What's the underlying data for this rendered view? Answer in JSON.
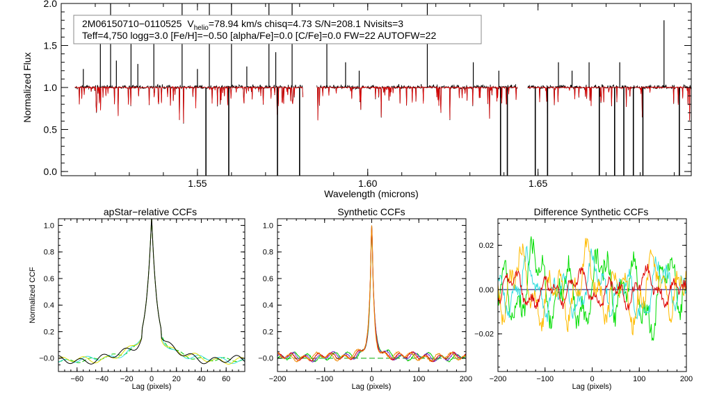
{
  "chart_data": [
    {
      "type": "line",
      "title": "",
      "xlabel": "Wavelength (microns)",
      "ylabel": "Normalized Flux",
      "xlim": [
        1.51,
        1.695
      ],
      "ylim": [
        -0.05,
        2.0
      ],
      "xticks": [
        "1.55",
        "1.60",
        "1.65"
      ],
      "xtick_values": [
        1.55,
        1.6,
        1.65
      ],
      "yticks": [
        "0.0",
        "0.5",
        "1.0",
        "1.5",
        "2.0"
      ],
      "ytick_values": [
        0.0,
        0.5,
        1.0,
        1.5,
        2.0
      ],
      "annotation": {
        "star_id": "2M06150710−0110525",
        "v_prefix": "V",
        "v_sub": "helio",
        "v_rest": "=78.94 km/s  chisq=4.73  S/N=208.1  Nvisits=3",
        "line2": "Teff=4,750 logg=3.0 [Fe/H]=−0.50 [alpha/Fe]=0.0 [C/Fe]=0.0 FW=22 AUTOFW=22"
      },
      "continuum": 1.0,
      "chips": [
        [
          1.514,
          1.581
        ],
        [
          1.585,
          1.644
        ],
        [
          1.647,
          1.696
        ]
      ],
      "series": [
        {
          "name": "observed spectrum",
          "color": "#000000"
        },
        {
          "name": "best-fit model",
          "color": "#dd0000"
        }
      ],
      "emission_spikes": [
        [
          1.5165,
          1.22
        ],
        [
          1.5215,
          1.55
        ],
        [
          1.5245,
          2.0
        ],
        [
          1.5262,
          1.32
        ],
        [
          1.5305,
          1.78
        ],
        [
          1.5325,
          1.28
        ],
        [
          1.5372,
          1.82
        ],
        [
          1.5455,
          2.0
        ],
        [
          1.55,
          1.22
        ],
        [
          1.5535,
          2.0
        ],
        [
          1.56,
          2.0
        ],
        [
          1.5645,
          1.25
        ],
        [
          1.571,
          2.0
        ],
        [
          1.573,
          1.42
        ],
        [
          1.5778,
          2.0
        ],
        [
          1.588,
          1.52
        ],
        [
          1.5935,
          1.3
        ],
        [
          1.5975,
          1.2
        ],
        [
          1.6175,
          2.0
        ],
        [
          1.631,
          1.3
        ],
        [
          1.6385,
          1.2
        ],
        [
          1.656,
          1.3
        ],
        [
          1.66,
          1.2
        ],
        [
          1.665,
          1.3
        ],
        [
          1.674,
          1.3
        ],
        [
          1.687,
          1.8
        ]
      ],
      "absorption_spikes": [
        [
          1.5525,
          0.0
        ],
        [
          1.5592,
          0.0
        ],
        [
          1.5735,
          0.0
        ],
        [
          1.58,
          0.0
        ],
        [
          1.639,
          0.0
        ],
        [
          1.641,
          0.0
        ],
        [
          1.6492,
          0.0
        ],
        [
          1.6528,
          0.0
        ],
        [
          1.668,
          0.0
        ],
        [
          1.6725,
          0.0
        ],
        [
          1.6752,
          0.0
        ],
        [
          1.678,
          0.0
        ],
        [
          1.6808,
          0.0
        ],
        [
          1.6915,
          0.0
        ]
      ]
    },
    {
      "type": "line",
      "title": "apStar−relative CCFs",
      "xlabel": "Lag (pixels)",
      "ylabel": "Normalized CCF",
      "xlim": [
        -75,
        75
      ],
      "ylim": [
        -0.1,
        1.05
      ],
      "xticks": [
        "−60",
        "−40",
        "−20",
        "0",
        "20",
        "40",
        "60"
      ],
      "xtick_values": [
        -60,
        -40,
        -20,
        0,
        20,
        40,
        60
      ],
      "yticks": [
        "−0.0",
        "0.2",
        "0.4",
        "0.6",
        "0.8",
        "1.0"
      ],
      "ytick_values": [
        0.0,
        0.2,
        0.4,
        0.6,
        0.8,
        1.0
      ],
      "peak": {
        "lag": 0,
        "value": 0.99
      },
      "series": [
        {
          "name": "visit 1",
          "color": "#00cc00"
        },
        {
          "name": "visit 2",
          "color": "#33dddd"
        },
        {
          "name": "visit 3",
          "color": "#dddd00"
        },
        {
          "name": "combined",
          "color": "#000000"
        }
      ]
    },
    {
      "type": "line",
      "title": "Synthetic CCFs",
      "xlabel": "Lag (pixels)",
      "ylabel": "",
      "xlim": [
        -200,
        200
      ],
      "ylim": [
        -0.1,
        1.05
      ],
      "xticks": [
        "−200",
        "−100",
        "0",
        "100",
        "200"
      ],
      "xtick_values": [
        -200,
        -100,
        0,
        100,
        200
      ],
      "yticks": [
        "−0.0",
        "0.2",
        "0.4",
        "0.6",
        "0.8",
        "1.0"
      ],
      "ytick_values": [
        0.0,
        0.2,
        0.4,
        0.6,
        0.8,
        1.0
      ],
      "peak": {
        "lag": 0,
        "value": 1.0
      },
      "series": [
        {
          "name": "visit 1",
          "color": "#00cc00"
        },
        {
          "name": "visit 2",
          "color": "#7733cc"
        },
        {
          "name": "visit 3",
          "color": "#dd0000"
        },
        {
          "name": "combined",
          "color": "#ee8800"
        }
      ]
    },
    {
      "type": "line",
      "title": "Difference Synthetic CCFs",
      "xlabel": "Lag (pixels)",
      "ylabel": "",
      "xlim": [
        -200,
        200
      ],
      "ylim": [
        -0.037,
        0.032
      ],
      "xticks": [
        "−200",
        "−100",
        "0",
        "100",
        "200"
      ],
      "xtick_values": [
        -200,
        -100,
        0,
        100,
        200
      ],
      "yticks": [
        "−0.02",
        "0.00",
        "0.02"
      ],
      "ytick_values": [
        -0.02,
        0.0,
        0.02
      ],
      "series": [
        {
          "name": "visit 1",
          "color": "#00dd00"
        },
        {
          "name": "visit 2",
          "color": "#33dddd"
        },
        {
          "name": "visit 3",
          "color": "#ffbb00"
        },
        {
          "name": "visit 4",
          "color": "#dd0000"
        }
      ]
    }
  ]
}
